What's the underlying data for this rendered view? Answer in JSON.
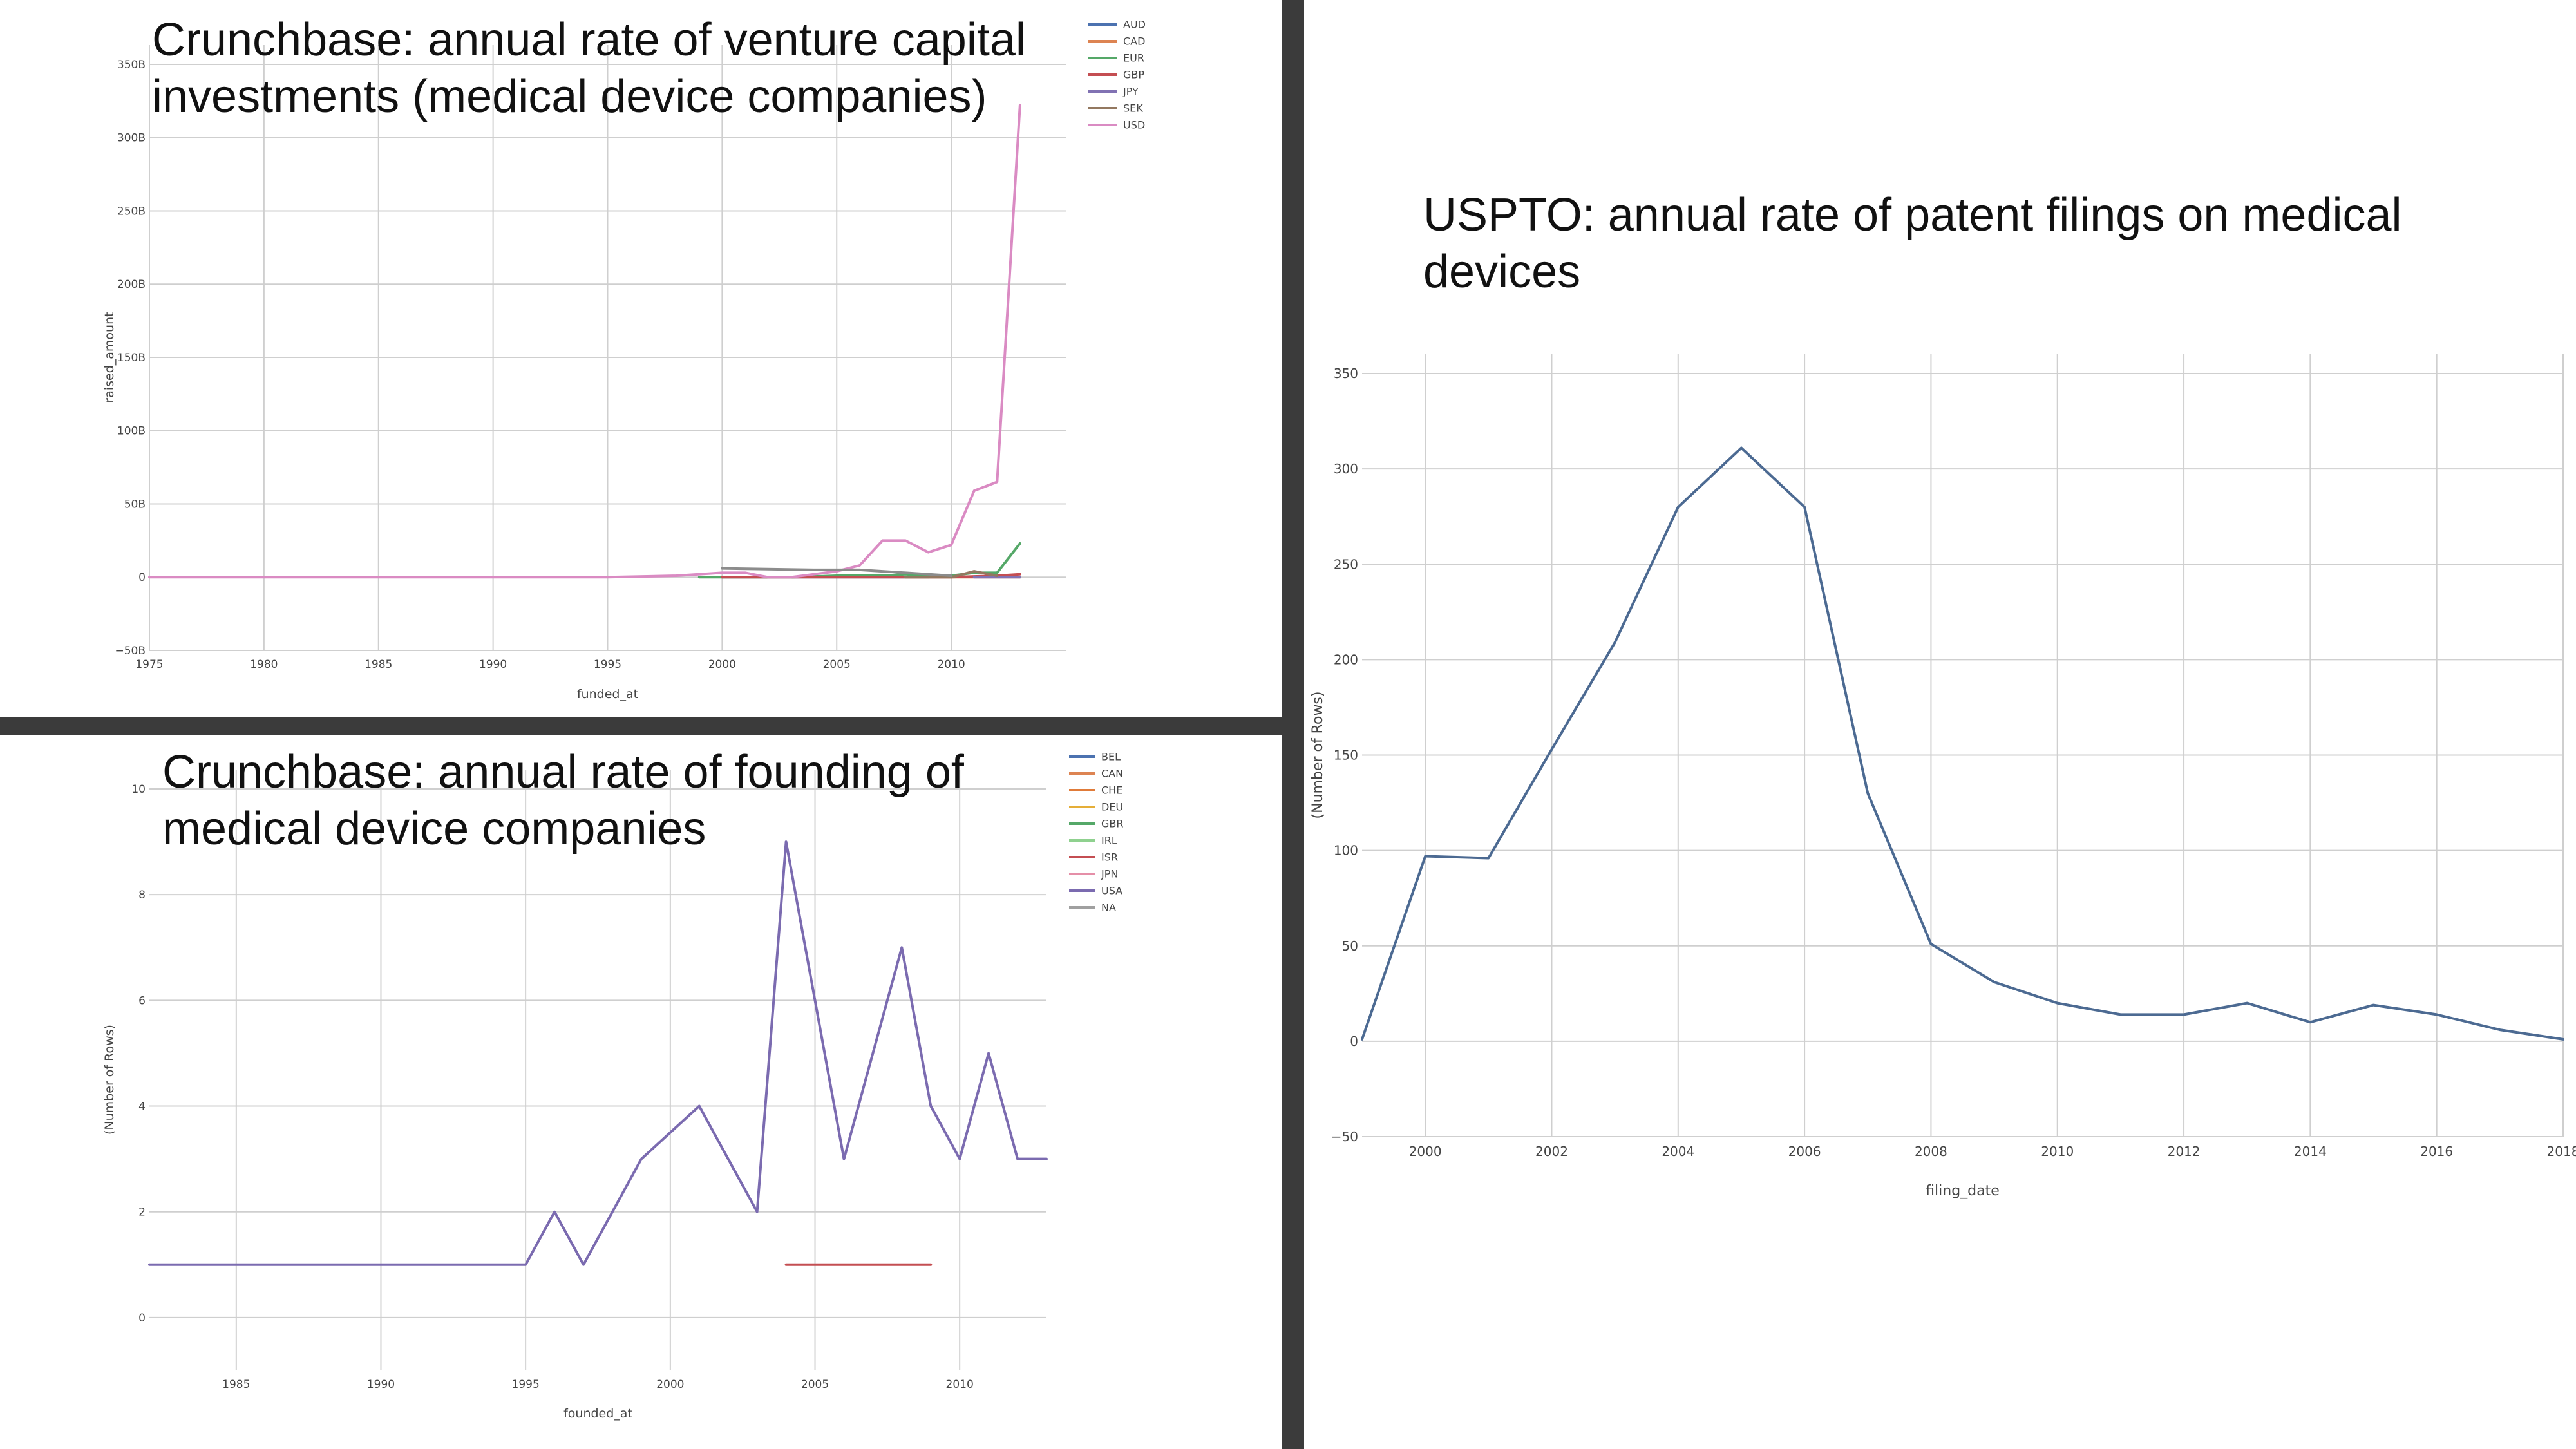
{
  "colors": {
    "background": "#ffffff",
    "divider": "#3b3b3b",
    "grid": "#cfcfcf",
    "axis": "#9a9a9a",
    "text": "#444444"
  },
  "chart_data": [
    {
      "id": "vc",
      "type": "line",
      "title": "Crunchbase: annual rate of venture capital investments (medical device companies)",
      "title_lines": [
        "Crunchbase: annual rate of venture capital",
        "investments (medical device companies)"
      ],
      "xlabel": "funded_at",
      "ylabel": "raised_amount",
      "xlim": [
        1975,
        2015
      ],
      "ylim": [
        -50,
        350
      ],
      "xticks": [
        1975,
        1980,
        1985,
        1990,
        1995,
        2000,
        2005,
        2010
      ],
      "xtick_labels": [
        "1975",
        "1980",
        "1985",
        "1990",
        "1995",
        "2000",
        "2005",
        "2010"
      ],
      "yticks": [
        -50,
        0,
        50,
        100,
        150,
        200,
        250,
        300,
        350
      ],
      "ytick_labels": [
        "−50B",
        "0",
        "50B",
        "100B",
        "150B",
        "200B",
        "250B",
        "300B",
        "350B"
      ],
      "y_unit": "billions",
      "grid": true,
      "legend_position": "top-right",
      "series": [
        {
          "name": "AUD",
          "color": "#4c72b0",
          "x": [
            2000,
            2001,
            2002,
            2005,
            2007,
            2008,
            2009
          ],
          "y": [
            0,
            0,
            0,
            0,
            0,
            0,
            0
          ]
        },
        {
          "name": "CAD",
          "color": "#dd8452",
          "x": [
            2008,
            2009,
            2010,
            2011,
            2012,
            2013
          ],
          "y": [
            0,
            0,
            0,
            0,
            0,
            0
          ]
        },
        {
          "name": "EUR",
          "color": "#55a868",
          "x": [
            1999,
            2000,
            2001,
            2003,
            2005,
            2007,
            2008,
            2009,
            2010,
            2011,
            2012,
            2013
          ],
          "y": [
            0,
            0,
            0,
            0,
            1,
            1,
            2,
            1,
            1,
            3,
            3,
            23
          ]
        },
        {
          "name": "GBP",
          "color": "#c44e52",
          "x": [
            2000,
            2002,
            2004,
            2006,
            2008,
            2010,
            2012,
            2013
          ],
          "y": [
            0,
            0,
            0,
            0,
            0,
            0,
            1,
            2
          ]
        },
        {
          "name": "JPY",
          "color": "#8172b3",
          "x": [
            2011,
            2012,
            2013
          ],
          "y": [
            0,
            0,
            0
          ]
        },
        {
          "name": "SEK",
          "color": "#937860",
          "x": [
            2008,
            2010,
            2011,
            2012
          ],
          "y": [
            0,
            0,
            4,
            1
          ]
        },
        {
          "name": "USD",
          "color": "#da8bc3",
          "x": [
            1975,
            1980,
            1985,
            1990,
            1995,
            1998,
            2000,
            2001,
            2002,
            2003,
            2004,
            2005,
            2006,
            2007,
            2008,
            2009,
            2010,
            2011,
            2012,
            2013
          ],
          "y": [
            0,
            0,
            0,
            0,
            0,
            1,
            3,
            3,
            0,
            0,
            2,
            4,
            8,
            25,
            25,
            17,
            22,
            59,
            65,
            322
          ]
        },
        {
          "name": "",
          "color": "#8c8c8c",
          "x": [
            2000,
            2004,
            2006,
            2008,
            2010
          ],
          "y": [
            6,
            5,
            5,
            3,
            1
          ]
        }
      ]
    },
    {
      "id": "founding",
      "type": "line",
      "title": "Crunchbase: annual rate of founding of medical device companies",
      "title_lines": [
        "Crunchbase: annual rate of founding of",
        "medical device companies"
      ],
      "xlabel": "founded_at",
      "ylabel": "(Number of Rows)",
      "xlim": [
        1982,
        2013
      ],
      "ylim": [
        -1,
        10
      ],
      "xticks": [
        1985,
        1990,
        1995,
        2000,
        2005,
        2010
      ],
      "xtick_labels": [
        "1985",
        "1990",
        "1995",
        "2000",
        "2005",
        "2010"
      ],
      "yticks": [
        0,
        2,
        4,
        6,
        8,
        10
      ],
      "ytick_labels": [
        "0",
        "2",
        "4",
        "6",
        "8",
        "10"
      ],
      "grid": true,
      "legend_position": "top-right",
      "series": [
        {
          "name": "BEL",
          "color": "#4c72b0",
          "x": [],
          "y": []
        },
        {
          "name": "CAN",
          "color": "#dd8452",
          "x": [],
          "y": []
        },
        {
          "name": "CHE",
          "color": "#e07b39",
          "x": [],
          "y": []
        },
        {
          "name": "DEU",
          "color": "#e5ae38",
          "x": [],
          "y": []
        },
        {
          "name": "GBR",
          "color": "#55a868",
          "x": [],
          "y": []
        },
        {
          "name": "IRL",
          "color": "#8fd18f",
          "x": [],
          "y": []
        },
        {
          "name": "ISR",
          "color": "#c44e52",
          "x": [
            2004,
            2005,
            2006,
            2007,
            2008,
            2009
          ],
          "y": [
            1,
            1,
            1,
            1,
            1,
            1
          ]
        },
        {
          "name": "JPN",
          "color": "#e58fa8",
          "x": [],
          "y": []
        },
        {
          "name": "USA",
          "color": "#7b6bb0",
          "x": [
            1982,
            1985,
            1990,
            1995,
            1996,
            1997,
            1999,
            2001,
            2003,
            2004,
            2005,
            2006,
            2008,
            2009,
            2010,
            2011,
            2012,
            2013
          ],
          "y": [
            1,
            1,
            1,
            1,
            2,
            1,
            3,
            4,
            2,
            9,
            6,
            3,
            7,
            4,
            3,
            5,
            3,
            3
          ]
        },
        {
          "name": "NA",
          "color": "#a0a0a0",
          "x": [],
          "y": []
        }
      ]
    },
    {
      "id": "uspto",
      "type": "line",
      "title": "USPTO: annual rate of patent filings on medical devices",
      "title_lines": [
        "USPTO: annual rate of patent filings on medical",
        "devices"
      ],
      "xlabel": "filing_date",
      "ylabel": "(Number of Rows)",
      "xlim": [
        1999,
        2018
      ],
      "ylim": [
        -50,
        350
      ],
      "xticks": [
        2000,
        2002,
        2004,
        2006,
        2008,
        2010,
        2012,
        2014,
        2016,
        2018
      ],
      "xtick_labels": [
        "2000",
        "2002",
        "2004",
        "2006",
        "2008",
        "2010",
        "2012",
        "2014",
        "2016",
        "2018"
      ],
      "yticks": [
        -50,
        0,
        50,
        100,
        150,
        200,
        250,
        300,
        350
      ],
      "ytick_labels": [
        "−50",
        "0",
        "50",
        "100",
        "150",
        "200",
        "250",
        "300",
        "350"
      ],
      "grid": true,
      "series": [
        {
          "name": "",
          "color": "#4c6a92",
          "x": [
            1999,
            2000,
            2001,
            2002,
            2003,
            2004,
            2005,
            2006,
            2007,
            2008,
            2009,
            2010,
            2011,
            2012,
            2013,
            2014,
            2015,
            2016,
            2017,
            2018
          ],
          "y": [
            1,
            97,
            96,
            153,
            209,
            280,
            311,
            280,
            130,
            51,
            31,
            20,
            14,
            14,
            20,
            10,
            19,
            14,
            6,
            1
          ]
        }
      ]
    }
  ]
}
